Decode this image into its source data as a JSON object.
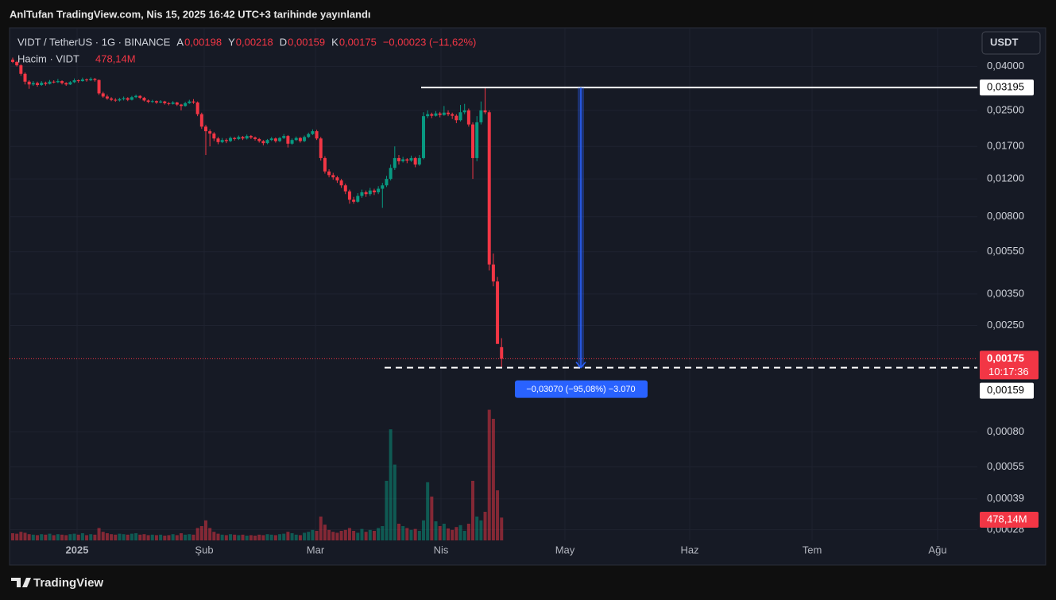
{
  "header": {
    "title": "AnlTufan TradingView.com, Nis 15, 2025 16:42 UTC+3 tarihinde yayınlandı"
  },
  "chart_data": {
    "type": "candlestick",
    "symbol": "VIDT / TetherUS · 1G · BINANCE",
    "ohlc_labels": [
      {
        "key": "A",
        "value": "0,00198"
      },
      {
        "key": "Y",
        "value": "0,00218"
      },
      {
        "key": "D",
        "value": "0,00159"
      },
      {
        "key": "K",
        "value": "0,00175"
      }
    ],
    "change": "−0,00023 (−11,62%)",
    "volume_title": "Hacim · VIDT",
    "volume_last_label": "478,14M",
    "currency": "USDT",
    "log_scale": true,
    "grid": true,
    "up_color": "#089981",
    "down_color": "#f23645",
    "ylim": [
      0.00025,
      0.058
    ],
    "yticks": [
      {
        "value": 0.04,
        "label": "0,04000"
      },
      {
        "value": 0.025,
        "label": "0,02500"
      },
      {
        "value": 0.017,
        "label": "0,01700"
      },
      {
        "value": 0.012,
        "label": "0,01200"
      },
      {
        "value": 0.008,
        "label": "0,00800"
      },
      {
        "value": 0.0055,
        "label": "0,00550"
      },
      {
        "value": 0.0035,
        "label": "0,00350"
      },
      {
        "value": 0.0025,
        "label": "0,00250"
      },
      {
        "value": 0.0008,
        "label": "0,00080"
      },
      {
        "value": 0.00055,
        "label": "0,00055"
      },
      {
        "value": 0.00039,
        "label": "0,00039"
      },
      {
        "value": 0.00028,
        "label": "0,00028"
      }
    ],
    "x_labels": [
      "2025",
      "Şub",
      "Mar",
      "Nis",
      "May",
      "Haz",
      "Tem",
      "Ağu"
    ],
    "candles": [
      [
        0.043,
        0.044,
        0.0415,
        0.042
      ],
      [
        0.042,
        0.0425,
        0.04,
        0.0405
      ],
      [
        0.0405,
        0.041,
        0.0362,
        0.037
      ],
      [
        0.037,
        0.0375,
        0.033,
        0.034
      ],
      [
        0.034,
        0.0345,
        0.0315,
        0.033
      ],
      [
        0.033,
        0.0342,
        0.0325,
        0.0335
      ],
      [
        0.0335,
        0.034,
        0.0322,
        0.0328
      ],
      [
        0.0328,
        0.0342,
        0.0325,
        0.0336
      ],
      [
        0.0336,
        0.034,
        0.0326,
        0.0332
      ],
      [
        0.0332,
        0.0346,
        0.033,
        0.034
      ],
      [
        0.034,
        0.0345,
        0.0334,
        0.0338
      ],
      [
        0.0338,
        0.035,
        0.0335,
        0.0342
      ],
      [
        0.0342,
        0.0345,
        0.033,
        0.0335
      ],
      [
        0.0335,
        0.0338,
        0.0325,
        0.033
      ],
      [
        0.033,
        0.0342,
        0.0328,
        0.0338
      ],
      [
        0.0338,
        0.0352,
        0.0335,
        0.0345
      ],
      [
        0.0345,
        0.0348,
        0.0336,
        0.0342
      ],
      [
        0.0342,
        0.0355,
        0.034,
        0.0348
      ],
      [
        0.0348,
        0.0352,
        0.034,
        0.0345
      ],
      [
        0.0345,
        0.0356,
        0.0342,
        0.035
      ],
      [
        0.035,
        0.0354,
        0.034,
        0.0346
      ],
      [
        0.0346,
        0.0348,
        0.0295,
        0.03
      ],
      [
        0.03,
        0.0305,
        0.0286,
        0.029
      ],
      [
        0.029,
        0.0296,
        0.028,
        0.0284
      ],
      [
        0.0284,
        0.0288,
        0.0276,
        0.028
      ],
      [
        0.028,
        0.0285,
        0.0274,
        0.0278
      ],
      [
        0.0278,
        0.0286,
        0.0275,
        0.0282
      ],
      [
        0.0282,
        0.029,
        0.0278,
        0.0285
      ],
      [
        0.0285,
        0.0288,
        0.0276,
        0.028
      ],
      [
        0.028,
        0.0292,
        0.0278,
        0.0288
      ],
      [
        0.0288,
        0.0296,
        0.0285,
        0.0292
      ],
      [
        0.0292,
        0.0294,
        0.0282,
        0.0286
      ],
      [
        0.0286,
        0.0289,
        0.0275,
        0.0278
      ],
      [
        0.0278,
        0.0281,
        0.027,
        0.0274
      ],
      [
        0.0274,
        0.028,
        0.0271,
        0.0276
      ],
      [
        0.0276,
        0.0278,
        0.0268,
        0.0272
      ],
      [
        0.0272,
        0.0279,
        0.027,
        0.0275
      ],
      [
        0.0275,
        0.0277,
        0.0266,
        0.027
      ],
      [
        0.027,
        0.0273,
        0.0264,
        0.0268
      ],
      [
        0.0268,
        0.0276,
        0.0266,
        0.0272
      ],
      [
        0.0272,
        0.0274,
        0.0262,
        0.0266
      ],
      [
        0.0266,
        0.0268,
        0.025,
        0.0262
      ],
      [
        0.0262,
        0.0274,
        0.026,
        0.027
      ],
      [
        0.027,
        0.028,
        0.0268,
        0.0275
      ],
      [
        0.0275,
        0.0282,
        0.0268,
        0.0272
      ],
      [
        0.0272,
        0.0275,
        0.0235,
        0.024
      ],
      [
        0.024,
        0.0244,
        0.0205,
        0.021
      ],
      [
        0.021,
        0.0214,
        0.0155,
        0.02
      ],
      [
        0.02,
        0.0204,
        0.017,
        0.0195
      ],
      [
        0.0195,
        0.0198,
        0.018,
        0.0185
      ],
      [
        0.0185,
        0.0188,
        0.0174,
        0.0178
      ],
      [
        0.0178,
        0.0186,
        0.0176,
        0.0182
      ],
      [
        0.0182,
        0.0185,
        0.0176,
        0.018
      ],
      [
        0.018,
        0.0189,
        0.0178,
        0.0186
      ],
      [
        0.0186,
        0.0188,
        0.0181,
        0.0184
      ],
      [
        0.0184,
        0.0191,
        0.0182,
        0.0188
      ],
      [
        0.0188,
        0.019,
        0.0182,
        0.0185
      ],
      [
        0.0185,
        0.0193,
        0.0183,
        0.019
      ],
      [
        0.019,
        0.0192,
        0.0184,
        0.0187
      ],
      [
        0.0187,
        0.0189,
        0.0181,
        0.0184
      ],
      [
        0.0184,
        0.0186,
        0.0177,
        0.018
      ],
      [
        0.018,
        0.0182,
        0.0172,
        0.0176
      ],
      [
        0.0176,
        0.0184,
        0.0174,
        0.0182
      ],
      [
        0.0182,
        0.0188,
        0.018,
        0.0185
      ],
      [
        0.0185,
        0.0187,
        0.0177,
        0.018
      ],
      [
        0.018,
        0.0188,
        0.0178,
        0.0186
      ],
      [
        0.0186,
        0.0194,
        0.0184,
        0.019
      ],
      [
        0.019,
        0.0192,
        0.0168,
        0.0175
      ],
      [
        0.0175,
        0.0185,
        0.0173,
        0.0182
      ],
      [
        0.0182,
        0.0189,
        0.018,
        0.0186
      ],
      [
        0.0186,
        0.0188,
        0.0177,
        0.018
      ],
      [
        0.018,
        0.0191,
        0.0178,
        0.0188
      ],
      [
        0.0188,
        0.0197,
        0.0186,
        0.0194
      ],
      [
        0.0194,
        0.0204,
        0.0192,
        0.02
      ],
      [
        0.02,
        0.0203,
        0.0182,
        0.0185
      ],
      [
        0.0185,
        0.0188,
        0.0146,
        0.015
      ],
      [
        0.015,
        0.0153,
        0.0127,
        0.013
      ],
      [
        0.013,
        0.0133,
        0.0122,
        0.0125
      ],
      [
        0.0125,
        0.0128,
        0.0119,
        0.0122
      ],
      [
        0.0122,
        0.0124,
        0.0115,
        0.0118
      ],
      [
        0.0118,
        0.012,
        0.0109,
        0.0112
      ],
      [
        0.0112,
        0.0114,
        0.0102,
        0.0105
      ],
      [
        0.0105,
        0.0107,
        0.0092,
        0.0096
      ],
      [
        0.0096,
        0.0099,
        0.0092,
        0.0094
      ],
      [
        0.0094,
        0.0103,
        0.0093,
        0.01
      ],
      [
        0.01,
        0.0107,
        0.0098,
        0.0104
      ],
      [
        0.0104,
        0.0106,
        0.0099,
        0.0102
      ],
      [
        0.0102,
        0.0109,
        0.01,
        0.0106
      ],
      [
        0.0106,
        0.0108,
        0.0101,
        0.0104
      ],
      [
        0.0104,
        0.0111,
        0.0102,
        0.0108
      ],
      [
        0.0108,
        0.0115,
        0.0088,
        0.0112
      ],
      [
        0.0112,
        0.0124,
        0.011,
        0.012
      ],
      [
        0.012,
        0.014,
        0.0118,
        0.0135
      ],
      [
        0.0135,
        0.017,
        0.0132,
        0.015
      ],
      [
        0.015,
        0.0155,
        0.014,
        0.0145
      ],
      [
        0.0145,
        0.0152,
        0.0143,
        0.0148
      ],
      [
        0.0148,
        0.015,
        0.0142,
        0.0146
      ],
      [
        0.0146,
        0.0154,
        0.0144,
        0.015
      ],
      [
        0.015,
        0.0152,
        0.0136,
        0.014
      ],
      [
        0.014,
        0.0155,
        0.0138,
        0.015
      ],
      [
        0.015,
        0.0245,
        0.0148,
        0.0235
      ],
      [
        0.0235,
        0.025,
        0.023,
        0.024
      ],
      [
        0.024,
        0.0244,
        0.023,
        0.0236
      ],
      [
        0.0236,
        0.0248,
        0.0234,
        0.0242
      ],
      [
        0.0242,
        0.0246,
        0.0232,
        0.0238
      ],
      [
        0.0238,
        0.0262,
        0.0236,
        0.0244
      ],
      [
        0.0244,
        0.025,
        0.0235,
        0.024
      ],
      [
        0.024,
        0.0244,
        0.0228,
        0.0236
      ],
      [
        0.0236,
        0.024,
        0.0218,
        0.0225
      ],
      [
        0.0225,
        0.0265,
        0.0222,
        0.0245
      ],
      [
        0.0245,
        0.0268,
        0.024,
        0.025
      ],
      [
        0.025,
        0.0255,
        0.021,
        0.0215
      ],
      [
        0.0215,
        0.022,
        0.012,
        0.015
      ],
      [
        0.015,
        0.0235,
        0.0145,
        0.022
      ],
      [
        0.022,
        0.0275,
        0.0215,
        0.025
      ],
      [
        0.025,
        0.03195,
        0.024,
        0.0245
      ],
      [
        0.0245,
        0.025,
        0.0045,
        0.0048
      ],
      [
        0.0048,
        0.0054,
        0.0038,
        0.004
      ],
      [
        0.004,
        0.0042,
        0.0021,
        0.00205
      ],
      [
        0.00198,
        0.00218,
        0.00159,
        0.00175
      ]
    ],
    "volumes": [
      150,
      140,
      180,
      160,
      130,
      120,
      110,
      130,
      120,
      140,
      110,
      130,
      120,
      110,
      130,
      140,
      120,
      150,
      110,
      130,
      120,
      260,
      180,
      150,
      130,
      120,
      140,
      130,
      120,
      140,
      150,
      120,
      130,
      110,
      120,
      110,
      120,
      100,
      110,
      130,
      110,
      150,
      120,
      130,
      120,
      260,
      300,
      420,
      260,
      180,
      140,
      120,
      110,
      130,
      120,
      110,
      120,
      100,
      110,
      100,
      120,
      110,
      130,
      120,
      110,
      130,
      140,
      180,
      150,
      120,
      110,
      160,
      180,
      220,
      200,
      500,
      330,
      220,
      180,
      160,
      200,
      220,
      260,
      200,
      160,
      240,
      180,
      220,
      200,
      260,
      300,
      1250,
      2330,
      1590,
      350,
      300,
      260,
      220,
      240,
      200,
      420,
      1220,
      920,
      400,
      300,
      350,
      250,
      220,
      280,
      320,
      200,
      350,
      1250,
      500,
      420,
      600,
      2740,
      2550,
      1050,
      478.14
    ],
    "volume_lim": [
      0,
      4000
    ],
    "high_line": {
      "value": 0.03195,
      "label": "0,03195"
    },
    "low_line": {
      "value": 0.00159,
      "label": "0,00159"
    },
    "last_price": {
      "value": 0.00175,
      "label": "0,00175",
      "countdown": "10:17:36"
    },
    "measure_label": "−0,03070 (−95,08%) −3.070"
  },
  "footer": {
    "brand": "TradingView"
  }
}
